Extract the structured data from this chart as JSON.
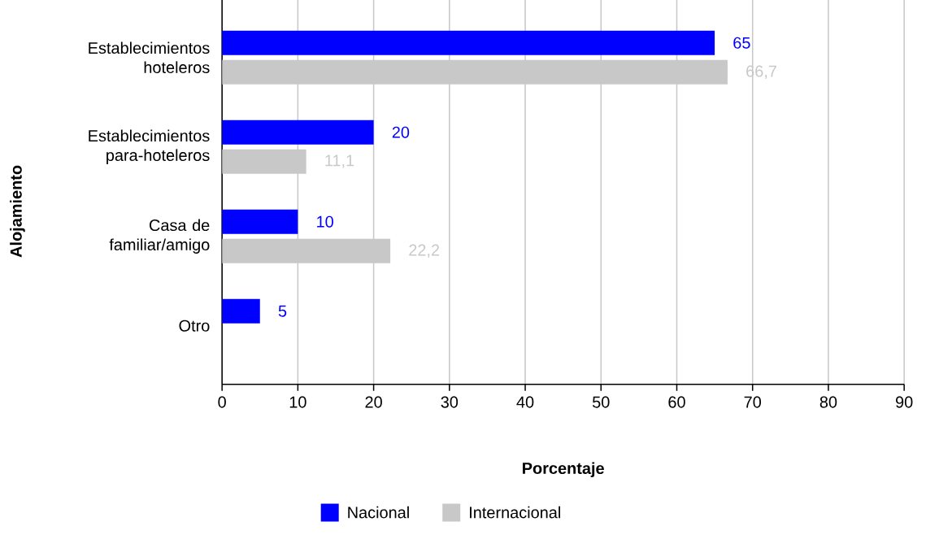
{
  "chart_data": {
    "type": "bar",
    "orientation": "horizontal",
    "xlabel": "Porcentaje",
    "ylabel": "Alojamiento",
    "categories": [
      "Establecimientos hoteleros",
      "Establecimientos para-hoteleros",
      "Casa de familiar/amigo",
      "Otro"
    ],
    "series": [
      {
        "name": "Nacional",
        "color": "#0000ff",
        "values": [
          65,
          20,
          10,
          5
        ],
        "value_labels": [
          "65",
          "20",
          "10",
          "5"
        ]
      },
      {
        "name": "Internacional",
        "color": "#c8c8c8",
        "values": [
          66.7,
          11.1,
          22.2,
          null
        ],
        "value_labels": [
          "66,7",
          "11,1",
          "22,2",
          null
        ]
      }
    ],
    "xlim": [
      0,
      90
    ],
    "xticks": [
      0,
      10,
      20,
      30,
      40,
      50,
      60,
      70,
      80,
      90
    ],
    "grid": "x",
    "legend": "bottom"
  }
}
